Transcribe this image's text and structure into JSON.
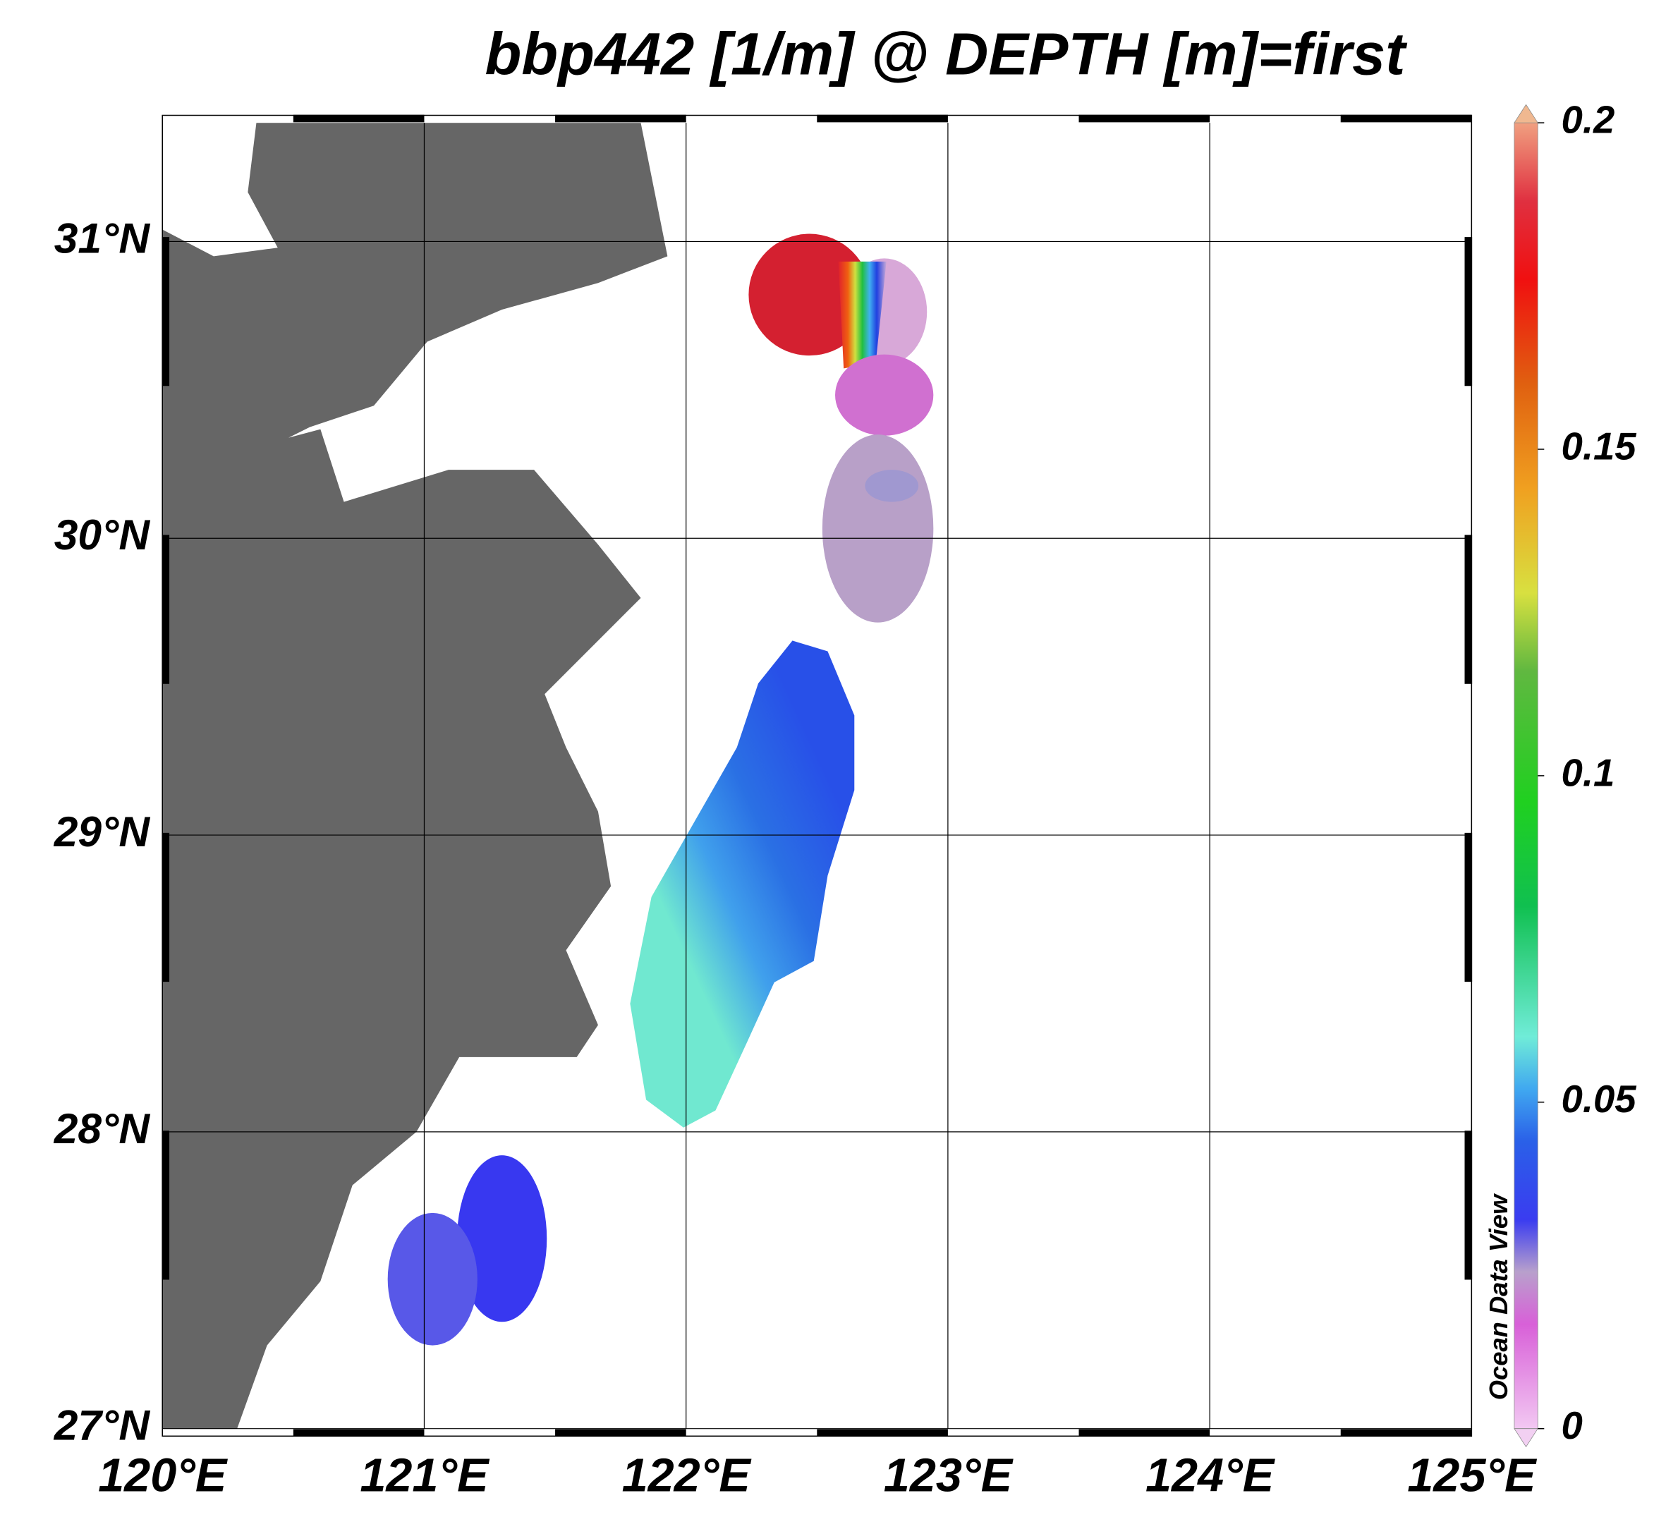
{
  "chart_data": {
    "type": "map",
    "title": "bbp442 [1/m] @ DEPTH [m]=first",
    "xlim": [
      120,
      125
    ],
    "xticks": [
      {
        "value": 120,
        "label": "120°E"
      },
      {
        "value": 121,
        "label": "121°E"
      },
      {
        "value": 122,
        "label": "122°E"
      },
      {
        "value": 123,
        "label": "123°E"
      },
      {
        "value": 124,
        "label": "124°E"
      },
      {
        "value": 125,
        "label": "125°E"
      }
    ],
    "ylim": [
      27,
      31.4
    ],
    "yticks": [
      {
        "value": 27,
        "label": "27°N"
      },
      {
        "value": 28,
        "label": "28°N"
      },
      {
        "value": 29,
        "label": "29°N"
      },
      {
        "value": 30,
        "label": "30°N"
      },
      {
        "value": 31,
        "label": "31°N"
      }
    ],
    "grid": true,
    "colorbar": {
      "lim": [
        0,
        0.2
      ],
      "ticks": [
        0,
        0.05,
        0.1,
        0.15,
        0.2
      ]
    },
    "watermark": "Ocean Data View"
  }
}
